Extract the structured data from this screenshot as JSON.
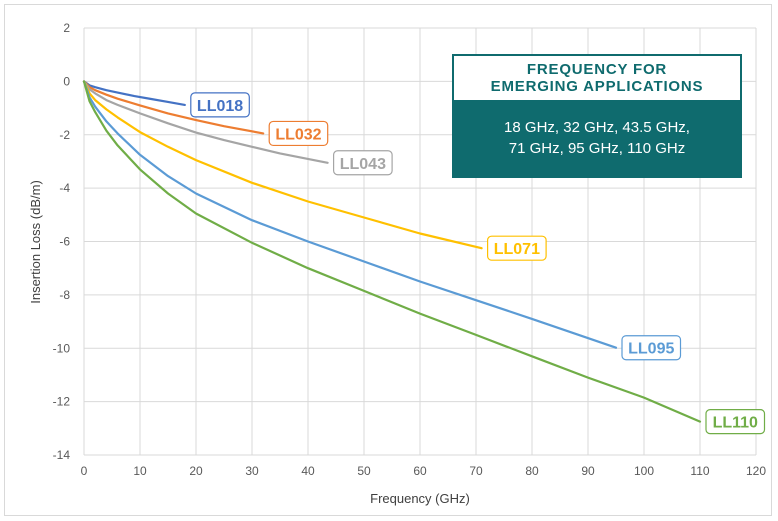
{
  "chart_data": {
    "type": "line",
    "title": "",
    "xlabel": "Frequency (GHz)",
    "ylabel": "Insertion Loss (dB/m)",
    "xlim": [
      0,
      120
    ],
    "ylim": [
      -14,
      2
    ],
    "xticks": [
      0,
      10,
      20,
      30,
      40,
      50,
      60,
      70,
      80,
      90,
      100,
      110,
      120
    ],
    "yticks": [
      2,
      0,
      -2,
      -4,
      -6,
      -8,
      -10,
      -12,
      -14
    ],
    "grid": true,
    "legend": "inline labels at line ends",
    "series": [
      {
        "name": "LL018",
        "color": "#4472c4",
        "x": [
          0,
          1,
          2,
          4,
          6,
          9,
          12,
          15,
          18
        ],
        "y": [
          0,
          -0.15,
          -0.22,
          -0.33,
          -0.42,
          -0.55,
          -0.66,
          -0.77,
          -0.88
        ]
      },
      {
        "name": "LL032",
        "color": "#ed7d31",
        "x": [
          0,
          1,
          2,
          4,
          6,
          10,
          15,
          20,
          25,
          32
        ],
        "y": [
          0,
          -0.22,
          -0.33,
          -0.5,
          -0.65,
          -0.9,
          -1.2,
          -1.45,
          -1.68,
          -1.95
        ]
      },
      {
        "name": "LL043",
        "color": "#a5a5a5",
        "x": [
          0,
          1,
          2,
          4,
          6,
          10,
          15,
          20,
          25,
          30,
          35,
          43.5
        ],
        "y": [
          0,
          -0.3,
          -0.45,
          -0.7,
          -0.88,
          -1.2,
          -1.57,
          -1.92,
          -2.2,
          -2.45,
          -2.7,
          -3.05
        ]
      },
      {
        "name": "LL071",
        "color": "#ffc000",
        "x": [
          0,
          1,
          2,
          4,
          6,
          10,
          15,
          20,
          30,
          40,
          50,
          60,
          71
        ],
        "y": [
          0,
          -0.45,
          -0.7,
          -1.05,
          -1.35,
          -1.9,
          -2.45,
          -2.95,
          -3.8,
          -4.5,
          -5.1,
          -5.7,
          -6.25
        ]
      },
      {
        "name": "LL095",
        "color": "#5b9bd5",
        "x": [
          0,
          1,
          2,
          4,
          6,
          10,
          15,
          20,
          30,
          40,
          50,
          60,
          70,
          80,
          95
        ],
        "y": [
          0,
          -0.6,
          -0.95,
          -1.5,
          -1.95,
          -2.75,
          -3.55,
          -4.2,
          -5.2,
          -6.0,
          -6.75,
          -7.5,
          -8.2,
          -8.9,
          -9.98
        ]
      },
      {
        "name": "LL110",
        "color": "#70ad47",
        "x": [
          0,
          1,
          2,
          4,
          6,
          10,
          15,
          20,
          30,
          40,
          50,
          60,
          70,
          80,
          90,
          100,
          110
        ],
        "y": [
          0,
          -0.75,
          -1.15,
          -1.85,
          -2.4,
          -3.3,
          -4.2,
          -4.95,
          -6.05,
          -7.0,
          -7.85,
          -8.7,
          -9.5,
          -10.3,
          -11.1,
          -11.85,
          -12.75
        ]
      }
    ]
  },
  "info_box": {
    "title_line1": "FREQUENCY FOR",
    "title_line2": "EMERGING APPLICATIONS",
    "body_line1": "18 GHz, 32 GHz, 43.5 GHz,",
    "body_line2": "71 GHz, 95 GHz, 110 GHz",
    "accent_color": "#0f6b6e"
  }
}
